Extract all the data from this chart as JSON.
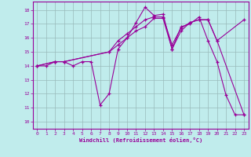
{
  "bg_color": "#c0ecec",
  "line_color": "#990099",
  "grid_color": "#99bbbb",
  "xlim": [
    -0.5,
    23.5
  ],
  "ylim": [
    9.5,
    18.6
  ],
  "xticks": [
    0,
    1,
    2,
    3,
    4,
    5,
    6,
    7,
    8,
    9,
    10,
    11,
    12,
    13,
    14,
    15,
    16,
    17,
    18,
    19,
    20,
    21,
    22,
    23
  ],
  "yticks": [
    10,
    11,
    12,
    13,
    14,
    15,
    16,
    17,
    18
  ],
  "xlabel": "Windchill (Refroidissement éolien,°C)",
  "curve1_x": [
    0,
    1,
    2,
    3,
    4,
    5,
    6,
    7,
    8,
    9,
    10,
    11,
    12,
    13,
    14,
    15,
    16,
    17,
    18,
    19,
    20,
    21,
    22,
    23
  ],
  "curve1_y": [
    14.0,
    14.0,
    14.3,
    14.3,
    14.0,
    14.3,
    14.3,
    11.2,
    12.0,
    15.2,
    16.0,
    17.1,
    18.2,
    17.6,
    17.7,
    15.2,
    16.8,
    17.0,
    17.5,
    15.8,
    14.3,
    11.9,
    10.5,
    10.5
  ],
  "curve2_x": [
    0,
    2,
    3,
    8,
    9,
    10,
    11,
    12,
    13,
    14,
    15,
    16,
    17,
    18,
    19,
    20,
    23
  ],
  "curve2_y": [
    14.0,
    14.3,
    14.3,
    15.0,
    15.8,
    16.3,
    16.8,
    17.3,
    17.5,
    17.5,
    15.5,
    16.7,
    17.1,
    17.3,
    17.3,
    15.8,
    17.3
  ],
  "curve3_x": [
    0,
    2,
    3,
    8,
    9,
    10,
    11,
    12,
    13,
    14,
    15,
    16,
    17,
    18,
    19,
    20,
    23
  ],
  "curve3_y": [
    14.0,
    14.3,
    14.3,
    15.0,
    15.5,
    16.0,
    16.5,
    16.8,
    17.4,
    17.4,
    15.2,
    16.5,
    17.1,
    17.3,
    17.3,
    15.8,
    10.5
  ]
}
